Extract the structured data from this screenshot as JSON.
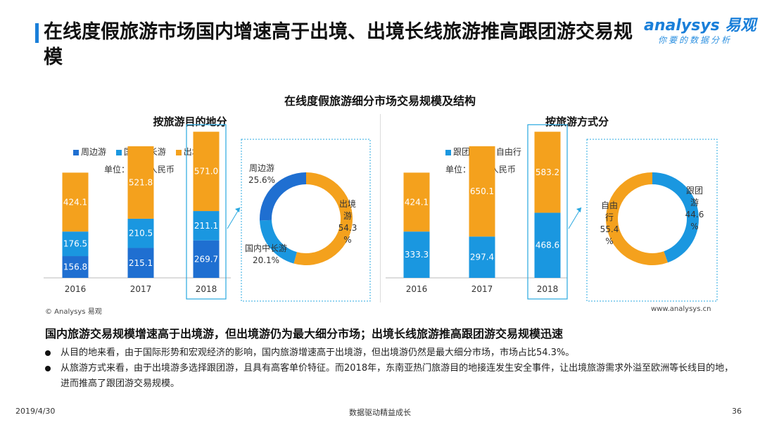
{
  "header": {
    "title": "在线度假旅游市场国内增速高于出境、出境长线旅游推高跟团游交易规模",
    "logo_main": "analysys 易观",
    "logo_sub": "你要的数据分析"
  },
  "chart_data": [
    {
      "type": "bar",
      "stacked": true,
      "title": "按旅游目的地分",
      "categories": [
        "2016",
        "2017",
        "2018"
      ],
      "series": [
        {
          "name": "周边游",
          "values": [
            156.8,
            215.1,
            269.7
          ],
          "color": "#1f6fd1"
        },
        {
          "name": "国内中长游",
          "values": [
            176.5,
            210.5,
            211.1
          ],
          "color": "#1a97e0"
        },
        {
          "name": "出境游",
          "values": [
            424.1,
            521.8,
            571.0
          ],
          "color": "#f4a11d"
        }
      ],
      "unit": "单位：亿元 人民币",
      "legend": "top-left",
      "highlight_category": "2018"
    },
    {
      "type": "pie",
      "donut": true,
      "slices": [
        {
          "label": "周边游",
          "value": 25.6,
          "text": "25.6%",
          "color": "#1f6fd1"
        },
        {
          "label": "国内中长游",
          "value": 20.1,
          "text": "20.1%",
          "color": "#1a97e0"
        },
        {
          "label": "出境游",
          "value": 54.3,
          "text": "54.3%",
          "color": "#f4a11d"
        }
      ]
    },
    {
      "type": "bar",
      "stacked": true,
      "title": "按旅游方式分",
      "categories": [
        "2016",
        "2017",
        "2018"
      ],
      "series": [
        {
          "name": "跟团游",
          "values": [
            333.3,
            297.4,
            468.6
          ],
          "color": "#1a97e0"
        },
        {
          "name": "自由行",
          "values": [
            424.1,
            650.1,
            583.2
          ],
          "color": "#f4a11d"
        }
      ],
      "unit": "单位：亿元 人民币",
      "legend": "top-left",
      "highlight_category": "2018"
    },
    {
      "type": "pie",
      "donut": true,
      "slices": [
        {
          "label": "跟团游",
          "value": 44.6,
          "text": "44.6%",
          "color": "#1a97e0"
        },
        {
          "label": "自由行",
          "value": 55.4,
          "text": "55.4%",
          "color": "#f4a11d"
        }
      ]
    }
  ],
  "chart_main_title": "在线度假旅游细分市场交易规模及结构",
  "source": {
    "left": "© Analysys 易观",
    "right": "www.analysys.cn"
  },
  "summary": "国内旅游交易规模增速高于出境游，但出境游仍为最大细分市场；出境长线旅游推高跟团游交易规模迅速",
  "bullets": [
    "从目的地来看，由于国际形势和宏观经济的影响，国内旅游增速高于出境游，但出境游仍然是最大细分市场，市场占比54.3%。",
    "从旅游方式来看，由于出境游多选择跟团游，且具有高客单价特征。而2018年，东南亚热门旅游目的地接连发生安全事件，让出境旅游需求外溢至欧洲等长线目的地，进而推高了跟团游交易规模。"
  ],
  "footer": {
    "date": "2019/4/30",
    "slogan": "数据驱动精益成长",
    "page": "36"
  }
}
